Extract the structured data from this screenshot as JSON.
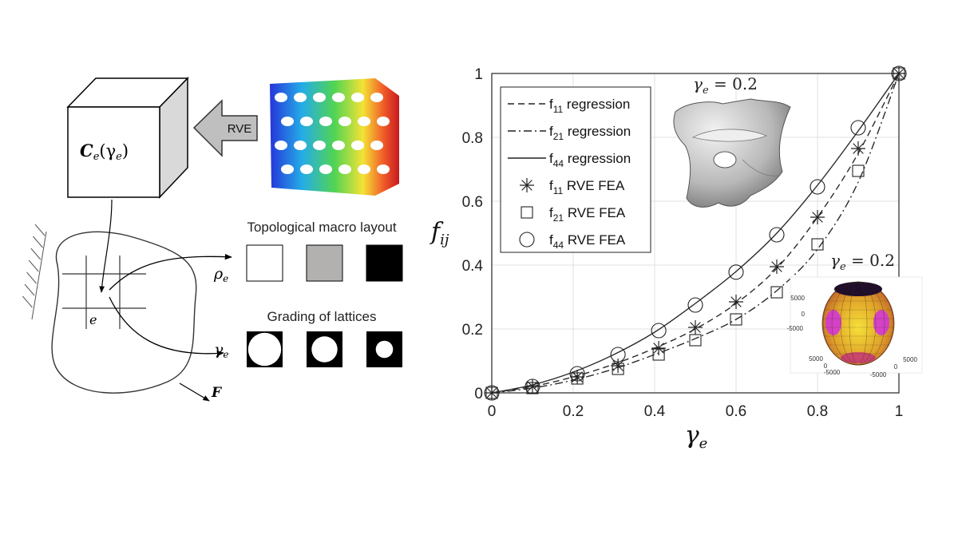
{
  "schematic": {
    "cube_label_C": "C",
    "cube_label_sub": "e",
    "cube_label_arg": "(γ",
    "cube_label_arg_sub": "e",
    "cube_label_close": ")",
    "arrow_label": "RVE",
    "element_label": "e",
    "force_label": "F",
    "rho_label": "ρ",
    "rho_sub": "e",
    "gamma_label": "γ",
    "gamma_sub": "e"
  },
  "panels": {
    "topological_title": "Topological macro layout",
    "grading_title": "Grading of lattices",
    "density_fills": [
      "#ffffff",
      "#b3b1b0",
      "#000000"
    ],
    "lattice_hole_fraction": [
      0.46,
      0.36,
      0.24
    ]
  },
  "insets": {
    "unit_cell_label": "γ_e = 0.2",
    "unit_cell_lhs": "γ",
    "unit_cell_sub": "e",
    "unit_cell_rhs": " = 0.2",
    "sphere_lhs": "γ",
    "sphere_sub": "e",
    "sphere_rhs": " = 0.2",
    "sphere_ticks_z": [
      "5000",
      "0",
      "-5000"
    ],
    "sphere_ticks_x": [
      "5000",
      "0",
      "-5000"
    ],
    "sphere_ticks_y": [
      "-5000",
      "0",
      "5000"
    ]
  },
  "chart_data": {
    "type": "line",
    "xlabel": "γ_e",
    "ylabel": "f_ij",
    "xlim": [
      0,
      1
    ],
    "ylim": [
      0,
      1
    ],
    "xticks": [
      "0",
      "0.2",
      "0.4",
      "0.6",
      "0.8",
      "1"
    ],
    "yticks": [
      "0",
      "0.2",
      "0.4",
      "0.6",
      "0.8",
      "1"
    ],
    "grid": true,
    "legend_position": "top-left",
    "series": [
      {
        "name": "f11 regression",
        "kind": "line",
        "dash": "dashed",
        "x": [
          0,
          0.1,
          0.2,
          0.3,
          0.4,
          0.5,
          0.6,
          0.7,
          0.8,
          0.9,
          1
        ],
        "y": [
          0,
          0.02,
          0.05,
          0.09,
          0.14,
          0.2,
          0.28,
          0.39,
          0.55,
          0.75,
          1
        ]
      },
      {
        "name": "f21 regression",
        "kind": "line",
        "dash": "dashdot",
        "x": [
          0,
          0.1,
          0.2,
          0.3,
          0.4,
          0.5,
          0.6,
          0.7,
          0.8,
          0.9,
          1
        ],
        "y": [
          0,
          0.015,
          0.04,
          0.075,
          0.12,
          0.17,
          0.23,
          0.32,
          0.45,
          0.66,
          1
        ]
      },
      {
        "name": "f44 regression",
        "kind": "line",
        "dash": "solid",
        "x": [
          0,
          0.1,
          0.2,
          0.3,
          0.4,
          0.5,
          0.6,
          0.7,
          0.8,
          0.9,
          1
        ],
        "y": [
          0,
          0.025,
          0.065,
          0.12,
          0.19,
          0.28,
          0.38,
          0.5,
          0.65,
          0.82,
          1
        ]
      },
      {
        "name": "f11 RVE FEA",
        "kind": "marker",
        "marker": "asterisk",
        "x": [
          0,
          0.1,
          0.21,
          0.31,
          0.41,
          0.5,
          0.6,
          0.7,
          0.8,
          0.9,
          1
        ],
        "y": [
          0,
          0.02,
          0.05,
          0.085,
          0.14,
          0.205,
          0.285,
          0.395,
          0.55,
          0.765,
          1
        ]
      },
      {
        "name": "f21 RVE FEA",
        "kind": "marker",
        "marker": "square",
        "x": [
          0,
          0.1,
          0.21,
          0.31,
          0.41,
          0.5,
          0.6,
          0.7,
          0.8,
          0.9,
          1
        ],
        "y": [
          0,
          0.015,
          0.045,
          0.075,
          0.12,
          0.165,
          0.23,
          0.315,
          0.465,
          0.695,
          1
        ]
      },
      {
        "name": "f44 RVE FEA",
        "kind": "marker",
        "marker": "circle",
        "x": [
          0,
          0.1,
          0.21,
          0.31,
          0.41,
          0.5,
          0.6,
          0.7,
          0.8,
          0.9,
          1
        ],
        "y": [
          0,
          0.02,
          0.06,
          0.12,
          0.195,
          0.275,
          0.378,
          0.495,
          0.645,
          0.83,
          1
        ]
      }
    ],
    "legend": [
      {
        "sub": "11",
        "text": " regression"
      },
      {
        "sub": "21",
        "text": " regression"
      },
      {
        "sub": "44",
        "text": " regression"
      },
      {
        "sub": "11",
        "text": " RVE FEA"
      },
      {
        "sub": "21",
        "text": " RVE FEA"
      },
      {
        "sub": "44",
        "text": " RVE FEA"
      }
    ],
    "legend_prefix": "f"
  }
}
